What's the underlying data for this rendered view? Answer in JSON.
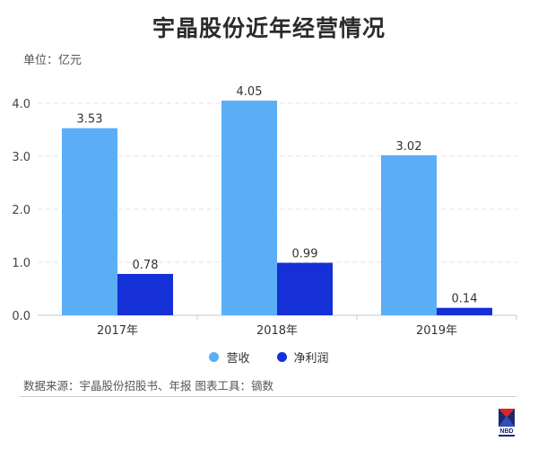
{
  "header": {
    "title": "宇晶股份近年经营情况",
    "unit": "单位：亿元"
  },
  "footer": {
    "source": "数据来源：宇晶股份招股书、年报 图表工具：镝数",
    "logo_text": "NBD"
  },
  "colors": {
    "revenue": "#5aaef5",
    "profit": "#1530d6",
    "grid": "#e3e3e3",
    "axis": "#c8c8c8"
  },
  "chart_data": {
    "type": "bar",
    "categories": [
      "2017年",
      "2018年",
      "2019年"
    ],
    "series": [
      {
        "name": "营收",
        "values": [
          3.53,
          4.05,
          3.02
        ],
        "labels": [
          "3.53",
          "4.05",
          "3.02"
        ]
      },
      {
        "name": "净利润",
        "values": [
          0.78,
          0.99,
          0.14
        ],
        "labels": [
          "0.78",
          "0.99",
          "0.14"
        ]
      }
    ],
    "yticks": [
      "0.0",
      "1.0",
      "2.0",
      "3.0",
      "4.0"
    ],
    "ylim": [
      0,
      4.0
    ],
    "grid": true,
    "legend": "bottom-center"
  }
}
